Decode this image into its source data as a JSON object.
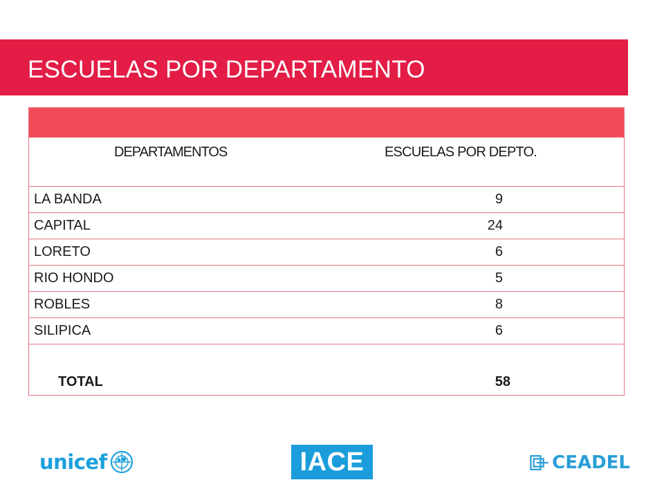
{
  "slide": {
    "title": "ESCUELAS POR DEPARTAMENTO",
    "accent_color": "#e31d46",
    "table_header_color": "#f24a58"
  },
  "table": {
    "columns": [
      "DEPARTAMENTOS",
      "ESCUELAS POR DEPTO."
    ],
    "rows": [
      {
        "departamento": "LA BANDA",
        "escuelas": "9"
      },
      {
        "departamento": "CAPITAL",
        "escuelas": "24"
      },
      {
        "departamento": "LORETO",
        "escuelas": "6"
      },
      {
        "departamento": "RIO HONDO",
        "escuelas": "5"
      },
      {
        "departamento": "ROBLES",
        "escuelas": "8"
      },
      {
        "departamento": "SILIPICA",
        "escuelas": "6"
      }
    ],
    "total_label": "TOTAL",
    "total_value": "58"
  },
  "logos": {
    "unicef": {
      "text": "unicef",
      "icon": "un-globe-icon",
      "color": "#1ca0dc"
    },
    "iace": {
      "text": "IACE",
      "color": "#1b9ddc"
    },
    "ceadel": {
      "text": "CEADEL",
      "icon": "ceadel-mark-icon",
      "color": "#2a9fd6"
    }
  }
}
